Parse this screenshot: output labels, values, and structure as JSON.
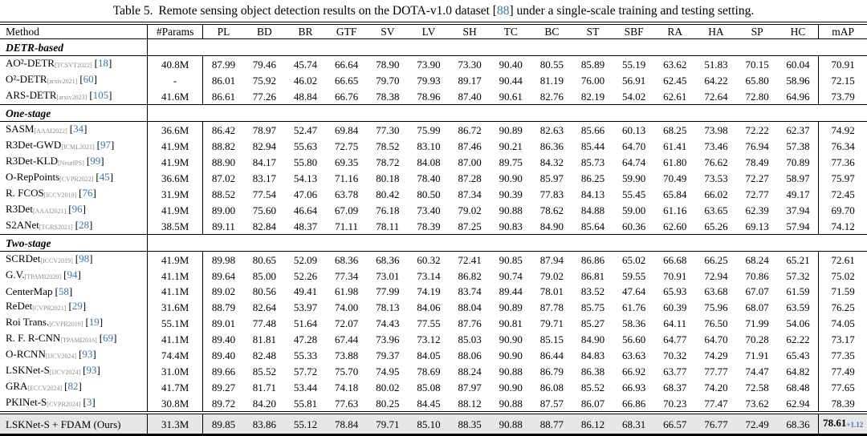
{
  "config": {
    "bracket_open": "[",
    "bracket_close": "]"
  },
  "caption": {
    "label": "Table 5.",
    "before_ref": "Remote sensing object detection results on the DOTA-v1.0 dataset",
    "ref": "88",
    "after_ref": "under a single-scale training and testing setting."
  },
  "colors": {
    "link": "#3e72b8",
    "venue_gray": "#8b8b8b",
    "highlight_bg": "#e7e7e7",
    "rule": "#000000"
  },
  "table": {
    "columns": [
      "Method",
      "#Params",
      "PL",
      "BD",
      "BR",
      "GTF",
      "SV",
      "LV",
      "SH",
      "TC",
      "BC",
      "ST",
      "SBF",
      "RA",
      "HA",
      "SP",
      "HC",
      "mAP"
    ],
    "sections": [
      {
        "label": "DETR-based",
        "rows": [
          {
            "method": "AO²-DETR",
            "venue": "[TCSVT2022]",
            "ref": "18",
            "params": "40.8M",
            "values": [
              "87.99",
              "79.46",
              "45.74",
              "66.64",
              "78.90",
              "73.90",
              "73.30",
              "90.40",
              "80.55",
              "85.89",
              "55.19",
              "63.62",
              "51.83",
              "70.15",
              "60.04"
            ],
            "map": "70.91"
          },
          {
            "method": "O²-DETR",
            "venue": "[arxiv2021]",
            "ref": "60",
            "params": "-",
            "values": [
              "86.01",
              "75.92",
              "46.02",
              "66.65",
              "79.70",
              "79.93",
              "89.17",
              "90.44",
              "81.19",
              "76.00",
              "56.91",
              "62.45",
              "64.22",
              "65.80",
              "58.96"
            ],
            "map": "72.15"
          },
          {
            "method": "ARS-DETR",
            "venue": "[arxiv2023]",
            "ref": "105",
            "params": "41.6M",
            "values": [
              "86.61",
              "77.26",
              "48.84",
              "66.76",
              "78.38",
              "78.96",
              "87.40",
              "90.61",
              "82.76",
              "82.19",
              "54.02",
              "62.61",
              "72.64",
              "72.80",
              "64.96"
            ],
            "map": "73.79"
          }
        ]
      },
      {
        "label": "One-stage",
        "rows": [
          {
            "method": "SASM",
            "venue": "[AAAI2022]",
            "ref": "34",
            "params": "36.6M",
            "values": [
              "86.42",
              "78.97",
              "52.47",
              "69.84",
              "77.30",
              "75.99",
              "86.72",
              "90.89",
              "82.63",
              "85.66",
              "60.13",
              "68.25",
              "73.98",
              "72.22",
              "62.37"
            ],
            "map": "74.92"
          },
          {
            "method": "R3Det-GWD",
            "venue": "[ICML2021]",
            "ref": "97",
            "params": "41.9M",
            "values": [
              "88.82",
              "82.94",
              "55.63",
              "72.75",
              "78.52",
              "83.10",
              "87.46",
              "90.21",
              "86.36",
              "85.44",
              "64.70",
              "61.41",
              "73.46",
              "76.94",
              "57.38"
            ],
            "map": "76.34"
          },
          {
            "method": "R3Det-KLD",
            "venue": "[NeurIPS]",
            "ref": "99",
            "params": "41.9M",
            "values": [
              "88.90",
              "84.17",
              "55.80",
              "69.35",
              "78.72",
              "84.08",
              "87.00",
              "89.75",
              "84.32",
              "85.73",
              "64.74",
              "61.80",
              "76.62",
              "78.49",
              "70.89"
            ],
            "map": "77.36"
          },
          {
            "method": "O-RepPoints",
            "venue": "[CVPR2022]",
            "ref": "45",
            "params": "36.6M",
            "values": [
              "87.02",
              "83.17",
              "54.13",
              "71.16",
              "80.18",
              "78.40",
              "87.28",
              "90.90",
              "85.97",
              "86.25",
              "59.90",
              "70.49",
              "73.53",
              "72.27",
              "58.97"
            ],
            "map": "75.97"
          },
          {
            "method": "R. FCOS",
            "venue": "[ICCV2019]",
            "ref": "76",
            "params": "31.9M",
            "values": [
              "88.52",
              "77.54",
              "47.06",
              "63.78",
              "80.42",
              "80.50",
              "87.34",
              "90.39",
              "77.83",
              "84.13",
              "55.45",
              "65.84",
              "66.02",
              "72.77",
              "49.17"
            ],
            "map": "72.45"
          },
          {
            "method": "R3Det",
            "venue": "[AAAI2021]",
            "ref": "96",
            "params": "41.9M",
            "values": [
              "89.00",
              "75.60",
              "46.64",
              "67.09",
              "76.18",
              "73.40",
              "79.02",
              "90.88",
              "78.62",
              "84.88",
              "59.00",
              "61.16",
              "63.65",
              "62.39",
              "37.94"
            ],
            "map": "69.70"
          },
          {
            "method": "S2ANet",
            "venue": "[TGRS2021]",
            "ref": "28",
            "params": "38.5M",
            "values": [
              "89.11",
              "82.84",
              "48.37",
              "71.11",
              "78.11",
              "78.39",
              "87.25",
              "90.83",
              "84.90",
              "85.64",
              "60.36",
              "62.60",
              "65.26",
              "69.13",
              "57.94"
            ],
            "map": "74.12"
          }
        ]
      },
      {
        "label": "Two-stage",
        "rows": [
          {
            "method": "SCRDet",
            "venue": "[ICCV2019]",
            "ref": "98",
            "params": "41.9M",
            "values": [
              "89.98",
              "80.65",
              "52.09",
              "68.36",
              "68.36",
              "60.32",
              "72.41",
              "90.85",
              "87.94",
              "86.86",
              "65.02",
              "66.68",
              "66.25",
              "68.24",
              "65.21"
            ],
            "map": "72.61"
          },
          {
            "method": "G.V.",
            "venue": "[TPAMI2020]",
            "ref": "94",
            "params": "41.1M",
            "values": [
              "89.64",
              "85.00",
              "52.26",
              "77.34",
              "73.01",
              "73.14",
              "86.82",
              "90.74",
              "79.02",
              "86.81",
              "59.55",
              "70.91",
              "72.94",
              "70.86",
              "57.32"
            ],
            "map": "75.02"
          },
          {
            "method": "CenterMap",
            "venue": "",
            "ref": "58",
            "params": "41.1M",
            "values": [
              "89.02",
              "80.56",
              "49.41",
              "61.98",
              "77.99",
              "74.19",
              "83.74",
              "89.44",
              "78.01",
              "83.52",
              "47.64",
              "65.93",
              "63.68",
              "67.07",
              "61.59"
            ],
            "map": "71.59"
          },
          {
            "method": "ReDet",
            "venue": "[CVPR2021]",
            "ref": "29",
            "params": "31.6M",
            "values": [
              "88.79",
              "82.64",
              "53.97",
              "74.00",
              "78.13",
              "84.06",
              "88.04",
              "90.89",
              "87.78",
              "85.75",
              "61.76",
              "60.39",
              "75.96",
              "68.07",
              "63.59"
            ],
            "map": "76.25"
          },
          {
            "method": "Roi Trans.",
            "venue": "[CVPR2019]",
            "ref": "19",
            "params": "55.1M",
            "values": [
              "89.01",
              "77.48",
              "51.64",
              "72.07",
              "74.43",
              "77.55",
              "87.76",
              "90.81",
              "79.71",
              "85.27",
              "58.36",
              "64.11",
              "76.50",
              "71.99",
              "54.06"
            ],
            "map": "74.05"
          },
          {
            "method": "R. F. R-CNN",
            "venue": "[TPAMI2016]",
            "ref": "69",
            "params": "41.1M",
            "values": [
              "89.40",
              "81.81",
              "47.28",
              "67.44",
              "73.96",
              "73.12",
              "85.03",
              "90.90",
              "85.15",
              "84.90",
              "56.60",
              "64.77",
              "64.70",
              "70.28",
              "62.22"
            ],
            "map": "73.17"
          },
          {
            "method": "O-RCNN",
            "venue": "[IJCV2024]",
            "ref": "93",
            "params": "74.4M",
            "values": [
              "89.40",
              "82.48",
              "55.33",
              "73.88",
              "79.37",
              "84.05",
              "88.06",
              "90.90",
              "86.44",
              "84.83",
              "63.63",
              "70.32",
              "74.29",
              "71.91",
              "65.43"
            ],
            "map": "77.35"
          },
          {
            "method": "LSKNet-S",
            "venue": "[IJCV2024]",
            "ref": "93",
            "params": "31.0M",
            "values": [
              "89.66",
              "85.52",
              "57.72",
              "75.70",
              "74.95",
              "78.69",
              "88.24",
              "90.88",
              "86.79",
              "86.38",
              "66.92",
              "63.77",
              "77.77",
              "74.47",
              "64.82"
            ],
            "map": "77.49"
          },
          {
            "method": "GRA",
            "venue": "[ECCV2024]",
            "ref": "82",
            "params": "41.7M",
            "values": [
              "89.27",
              "81.71",
              "53.44",
              "74.18",
              "80.02",
              "85.08",
              "87.97",
              "90.90",
              "86.08",
              "85.52",
              "66.93",
              "68.37",
              "74.20",
              "72.58",
              "68.48"
            ],
            "map": "77.65"
          },
          {
            "method": "PKINet-S",
            "venue": "[CVPR2024]",
            "ref": "3",
            "params": "30.8M",
            "values": [
              "89.72",
              "84.20",
              "55.81",
              "77.63",
              "80.25",
              "84.45",
              "88.12",
              "90.88",
              "87.57",
              "86.07",
              "66.86",
              "70.23",
              "77.47",
              "73.62",
              "62.94"
            ],
            "map": "78.39"
          }
        ]
      }
    ],
    "final_row": {
      "method": "LSKNet-S + FDAM (Ours)",
      "params": "31.3M",
      "values": [
        "89.85",
        "83.86",
        "55.12",
        "78.84",
        "79.71",
        "85.10",
        "88.35",
        "90.88",
        "88.77",
        "86.12",
        "68.31",
        "66.57",
        "76.77",
        "72.49",
        "68.36"
      ],
      "map": "78.61",
      "delta": "+1.12"
    }
  }
}
